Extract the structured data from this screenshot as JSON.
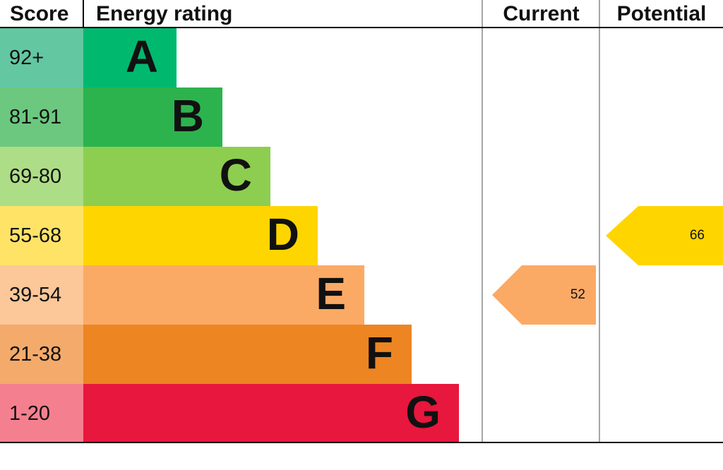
{
  "header": {
    "score": "Score",
    "rating": "Energy rating",
    "current": "Current",
    "potential": "Potential"
  },
  "chart_data": {
    "type": "bar",
    "variant": "epc-energy-rating",
    "title": "Energy rating",
    "columns": [
      "Score",
      "Energy rating",
      "Current",
      "Potential"
    ],
    "bands": [
      {
        "range": "92+",
        "letter": "A",
        "color": "#00b96f",
        "tint": "#63c7a2"
      },
      {
        "range": "81-91",
        "letter": "B",
        "color": "#2cb34e",
        "tint": "#6cc87e"
      },
      {
        "range": "69-80",
        "letter": "C",
        "color": "#8dce50",
        "tint": "#aedd87"
      },
      {
        "range": "55-68",
        "letter": "D",
        "color": "#ffd500",
        "tint": "#ffe366"
      },
      {
        "range": "39-54",
        "letter": "E",
        "color": "#fbaa65",
        "tint": "#fcc799"
      },
      {
        "range": "21-38",
        "letter": "F",
        "color": "#ed8522",
        "tint": "#f4aa6b"
      },
      {
        "range": "1-20",
        "letter": "G",
        "color": "#e8173d",
        "tint": "#f4808f"
      }
    ],
    "current": {
      "value": "52",
      "band": "E",
      "color": "#fbaa65"
    },
    "potential": {
      "value": "66",
      "band": "D",
      "color": "#ffd500"
    }
  }
}
